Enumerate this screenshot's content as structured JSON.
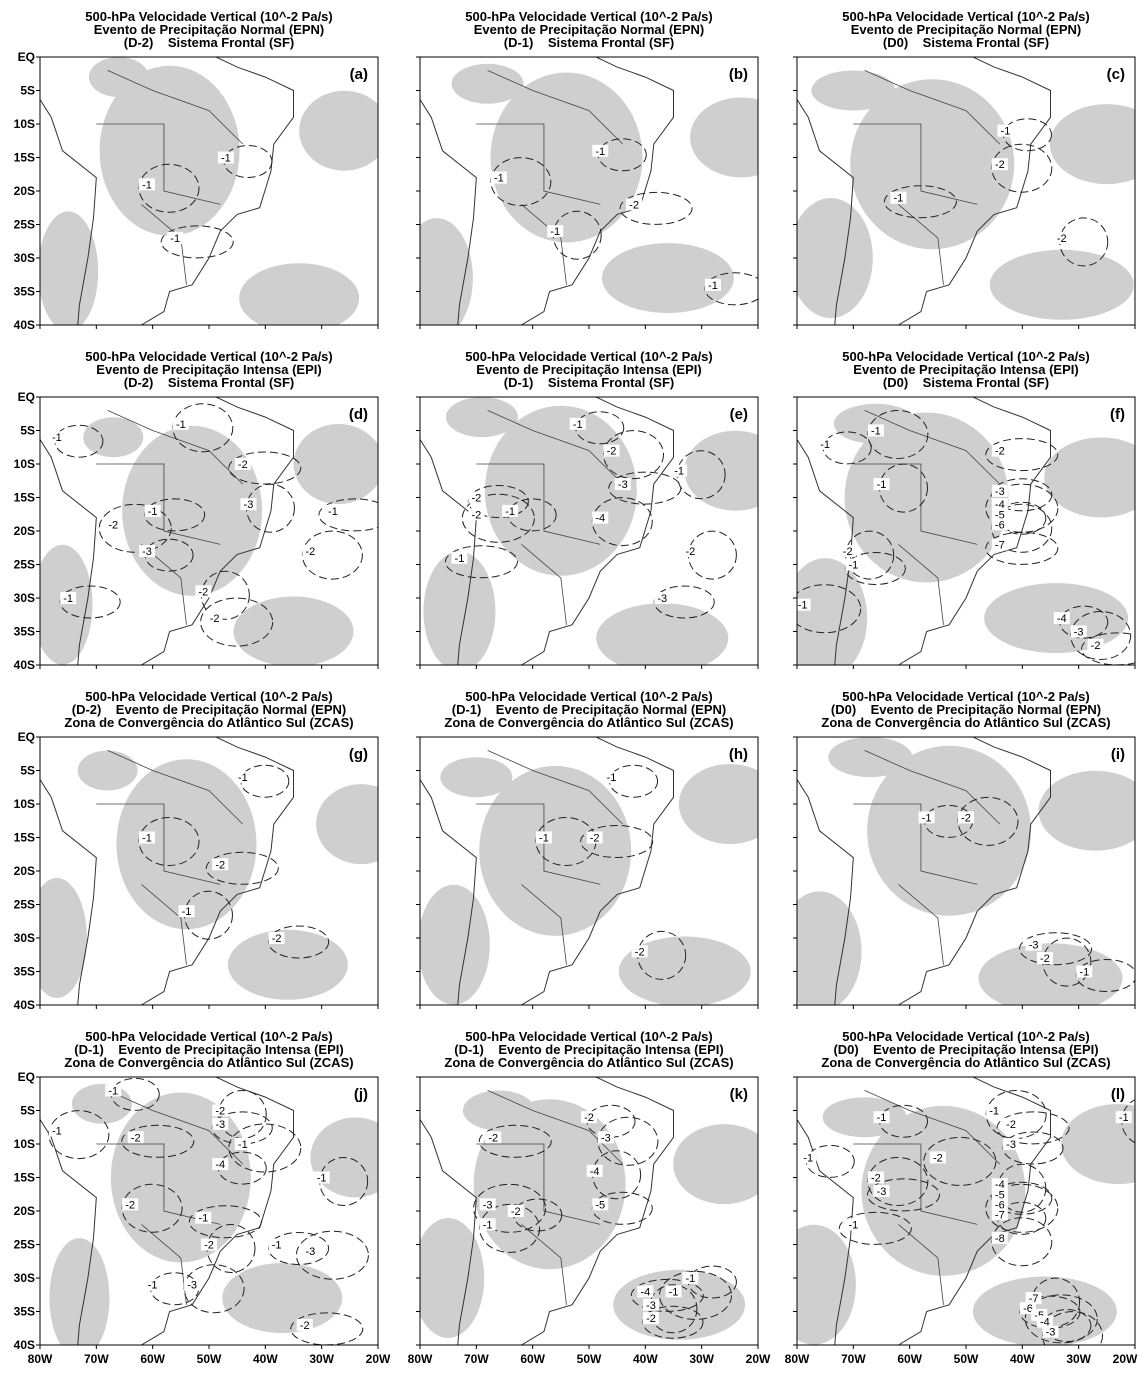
{
  "y_axis_labels": [
    "EQ",
    "5S",
    "10S",
    "15S",
    "20S",
    "25S",
    "30S",
    "35S",
    "40S"
  ],
  "x_axis_labels": [
    "80W",
    "70W",
    "60W",
    "50W",
    "40W",
    "30W",
    "20W"
  ],
  "panels": [
    {
      "title": [
        "500-hPa Velocidade Vertical (10^-2 Pa/s)",
        "Evento de Precipitação Normal (EPN)",
        "(D-2)    Sistema Frontal (SF)"
      ],
      "tag": "(a)",
      "contours": [
        "-1",
        "-1",
        "-1"
      ]
    },
    {
      "title": [
        "500-hPa Velocidade Vertical (10^-2 Pa/s)",
        "Evento de Precipitação Normal (EPN)",
        "(D-1)    Sistema Frontal (SF)"
      ],
      "tag": "(b)",
      "contours": [
        "-1",
        "-1",
        "-2",
        "-1",
        "-1"
      ]
    },
    {
      "title": [
        "500-hPa Velocidade Vertical (10^-2 Pa/s)",
        "Evento de Precipitação Normal (EPN)",
        "(D0)    Sistema Frontal (SF)"
      ],
      "tag": "(c)",
      "contours": [
        "-1",
        "-2",
        "-1",
        "-2"
      ]
    },
    {
      "title": [
        "500-hPa Velocidade Vertical (10^-2 Pa/s)",
        "Evento de Precipitação Intensa (EPI)",
        "(D-2)    Sistema Frontal (SF)"
      ],
      "tag": "(d)",
      "contours": [
        "-1",
        "-1",
        "-2",
        "-3",
        "-1",
        "-2",
        "-3",
        "-2",
        "-1",
        "-2",
        "-1",
        "-2"
      ]
    },
    {
      "title": [
        "500-hPa Velocidade Vertical (10^-2 Pa/s)",
        "Evento de Precipitação Intensa (EPI)",
        "(D-1)    Sistema Frontal (SF)"
      ],
      "tag": "(e)",
      "contours": [
        "-1",
        "-2",
        "-3",
        "-1",
        "-2",
        "-2",
        "-1",
        "-4",
        "-1",
        "-2",
        "-3"
      ]
    },
    {
      "title": [
        "500-hPa Velocidade Vertical (10^-2 Pa/s)",
        "Evento de Precipitação Intensa (EPI)",
        "(D0)    Sistema Frontal (SF)"
      ],
      "tag": "(f)",
      "contours": [
        "-1",
        "-1",
        "-2",
        "-1",
        "-3",
        "-4",
        "-5",
        "-6",
        "-7",
        "-2",
        "-1",
        "-1",
        "-4",
        "-3",
        "-2"
      ]
    },
    {
      "title": [
        "500-hPa Velocidade Vertical (10^-2 Pa/s)",
        "(D-2)    Evento de Precipitação Normal (EPN)",
        "Zona de Convergência do Atlântico Sul (ZCAS)"
      ],
      "tag": "(g)",
      "contours": [
        "-1",
        "-1",
        "-2",
        "-1",
        "-2"
      ]
    },
    {
      "title": [
        "500-hPa Velocidade Vertical (10^-2 Pa/s)",
        "(D-1)    Evento de Precipitação Normal (EPN)",
        "Zona de Convergência do Atlântico Sul (ZCAS)"
      ],
      "tag": "(h)",
      "contours": [
        "-1",
        "-1",
        "-2",
        "-2"
      ]
    },
    {
      "title": [
        "500-hPa Velocidade Vertical (10^-2 Pa/s)",
        "(D0)    Evento de Precipitação Normal (EPN)",
        "Zona de Convergência do Atlântico Sul (ZCAS)"
      ],
      "tag": "(i)",
      "contours": [
        "-1",
        "-2",
        "-3",
        "-2",
        "-1"
      ]
    },
    {
      "title": [
        "500-hPa Velocidade Vertical (10^-2 Pa/s)",
        "(D-1)    Evento de Precipitação Intensa (EPI)",
        "Zona de Convergência do Atlântico Sul (ZCAS)"
      ],
      "tag": "(j)",
      "contours": [
        "-1",
        "-1",
        "-2",
        "-2",
        "-3",
        "-1",
        "-4",
        "-2",
        "-1",
        "-2",
        "-1",
        "-3",
        "-1",
        "-3",
        "-2",
        "-1"
      ]
    },
    {
      "title": [
        "500-hPa Velocidade Vertical (10^-2 Pa/s)",
        "(D-1)    Evento de Precipitação Intensa (EPI)",
        "Zona de Convergência do Atlântico Sul (ZCAS)"
      ],
      "tag": "(k)",
      "contours": [
        "-2",
        "-3",
        "-2",
        "-4",
        "-5",
        "-3",
        "-2",
        "-1",
        "-4",
        "-3",
        "-2",
        "-1",
        "-1"
      ]
    },
    {
      "title": [
        "500-hPa Velocidade Vertical (10^-2 Pa/s)",
        "(D0)    Evento de Precipitação Intensa (EPI)",
        "Zona de Convergência do Atlântico Sul (ZCAS)"
      ],
      "tag": "(l)",
      "contours": [
        "-1",
        "-1",
        "-2",
        "-1",
        "-3",
        "-2",
        "-1",
        "-2",
        "-3",
        "-4",
        "-5",
        "-6",
        "-7",
        "-8",
        "-1",
        "-7",
        "-6",
        "-5",
        "-4",
        "-3"
      ]
    }
  ]
}
